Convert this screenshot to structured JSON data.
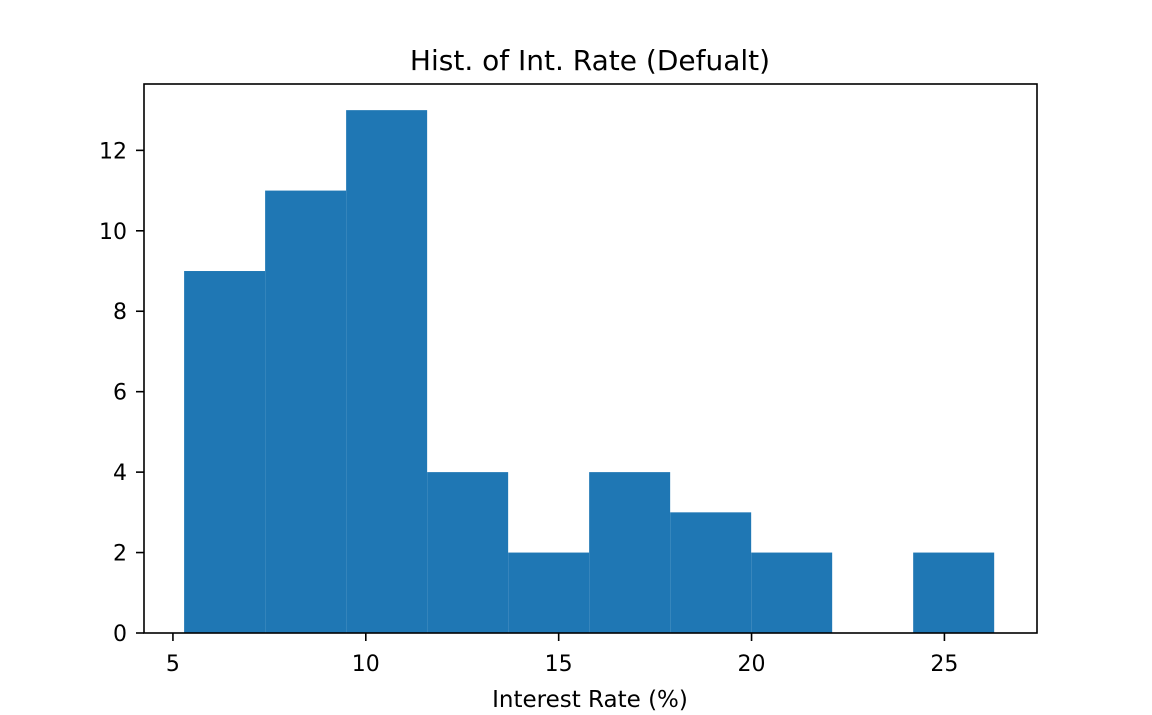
{
  "chart_data": {
    "type": "bar",
    "title": "Hist. of Int. Rate (Defualt)",
    "xlabel": "Interest Rate (%)",
    "ylabel": "",
    "xlim": [
      4.25,
      27.4
    ],
    "ylim": [
      0,
      13.65
    ],
    "xticks": [
      5,
      10,
      15,
      20,
      25
    ],
    "yticks": [
      0,
      2,
      4,
      6,
      8,
      10,
      12
    ],
    "bins": [
      {
        "x0": 5.29,
        "x1": 7.39,
        "count": 9
      },
      {
        "x0": 7.39,
        "x1": 9.49,
        "count": 11
      },
      {
        "x0": 9.49,
        "x1": 11.59,
        "count": 13
      },
      {
        "x0": 11.59,
        "x1": 13.69,
        "count": 4
      },
      {
        "x0": 13.69,
        "x1": 15.79,
        "count": 2
      },
      {
        "x0": 15.79,
        "x1": 17.89,
        "count": 4
      },
      {
        "x0": 17.89,
        "x1": 19.99,
        "count": 3
      },
      {
        "x0": 19.99,
        "x1": 22.09,
        "count": 2
      },
      {
        "x0": 22.09,
        "x1": 24.19,
        "count": 0
      },
      {
        "x0": 24.19,
        "x1": 26.29,
        "count": 2
      }
    ],
    "grid": false,
    "legend": "none",
    "bar_color": "#1f77b4",
    "axis_color": "#000000"
  }
}
